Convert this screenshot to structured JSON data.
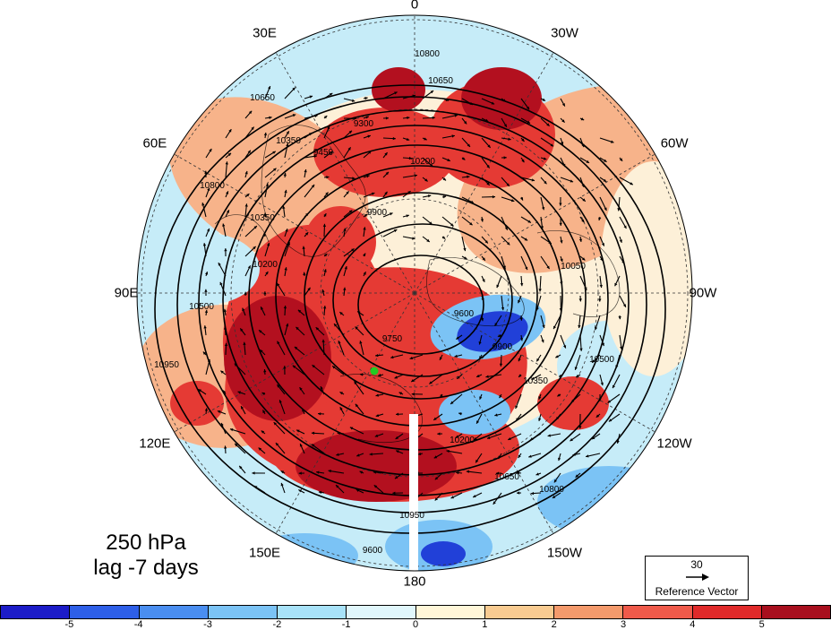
{
  "title": {
    "line1": "250 hPa",
    "line2": "lag -7 days"
  },
  "longitude_labels": [
    "0",
    "30W",
    "60W",
    "90W",
    "120W",
    "150W",
    "180",
    "150E",
    "120E",
    "90E",
    "60E",
    "30E"
  ],
  "contour_labels": [
    "10800",
    "10650",
    "10350",
    "10650",
    "10800",
    "9900",
    "10200",
    "10350",
    "10500",
    "10950",
    "9600",
    "9900",
    "10050",
    "10500",
    "10650",
    "10800",
    "10950",
    "9600",
    "9750",
    "10350",
    "9300",
    "9450",
    "10200",
    "10200"
  ],
  "reference_vector": {
    "value": "30",
    "label": "Reference Vector"
  },
  "colorbar": {
    "ticks": [
      "-5",
      "-4",
      "-3",
      "-2",
      "-1",
      "0",
      "1",
      "2",
      "3",
      "4",
      "5"
    ],
    "colors": [
      "#1c1cc8",
      "#2e5fe8",
      "#4a8ef0",
      "#7bc3f5",
      "#a8e2f8",
      "#e0f6fb",
      "#fff6d8",
      "#f8cb91",
      "#f49a6c",
      "#ef5a4a",
      "#e02a2a",
      "#a80f1e"
    ]
  },
  "marker_color": "#22cc22",
  "map": {
    "projection": "polar-stereographic-north",
    "field_colors": {
      "strong_positive": "#b3101f",
      "positive": "#e53a34",
      "weak_positive": "#f7b38a",
      "neutral": "#fdf0d8",
      "weak_negative": "#c6ecf8",
      "negative": "#7bc3f5",
      "strong_negative": "#2140d8"
    }
  }
}
